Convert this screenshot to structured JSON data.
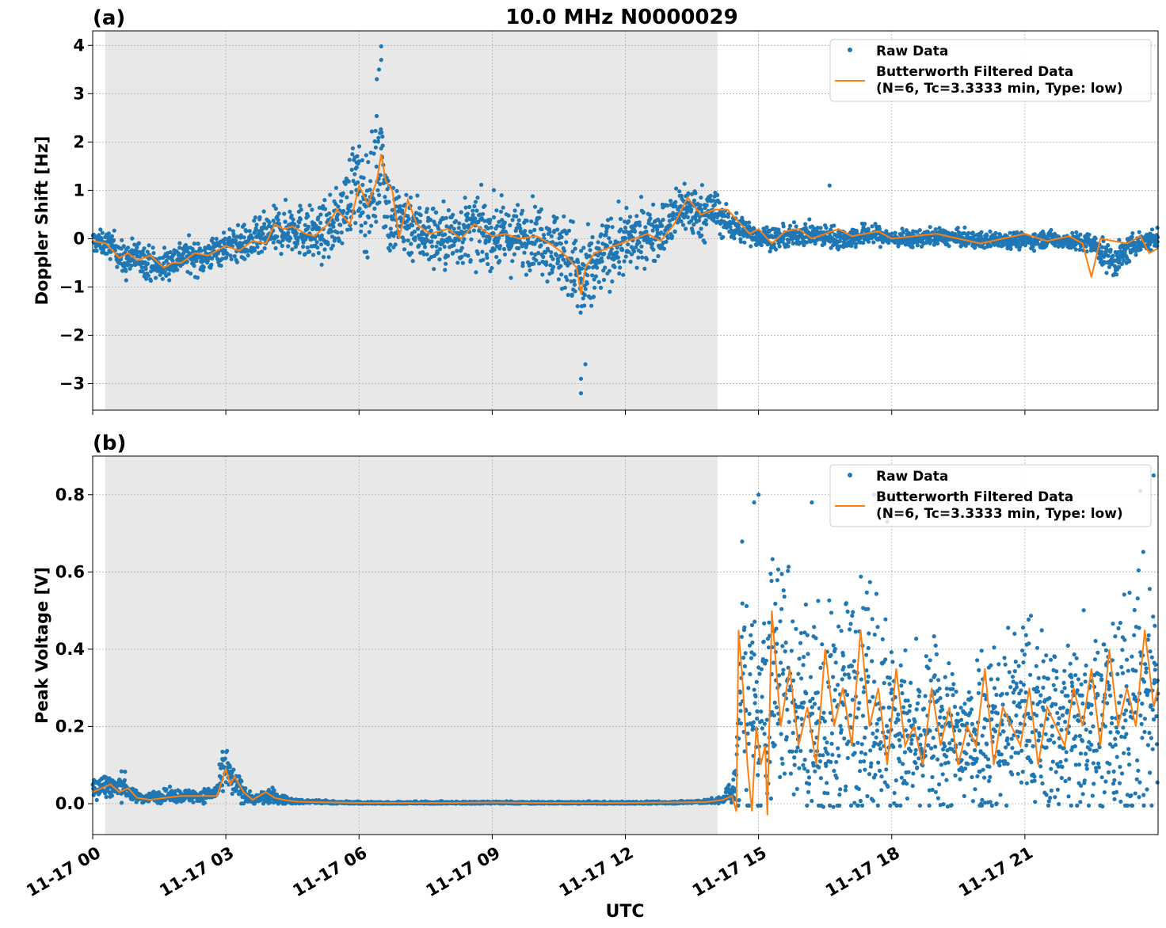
{
  "figure": {
    "title": "10.0 MHz N0000029",
    "xlabel": "UTC",
    "night_shading": {
      "start_hour": 0.28,
      "end_hour": 14.08,
      "color": "#e8e8e8"
    },
    "xlim_hours": [
      0,
      24
    ],
    "x_ticks": [
      {
        "hour": 0,
        "label": "11-17 00"
      },
      {
        "hour": 3,
        "label": "11-17 03"
      },
      {
        "hour": 6,
        "label": "11-17 06"
      },
      {
        "hour": 9,
        "label": "11-17 09"
      },
      {
        "hour": 12,
        "label": "11-17 12"
      },
      {
        "hour": 15,
        "label": "11-17 15"
      },
      {
        "hour": 18,
        "label": "11-17 18"
      },
      {
        "hour": 21,
        "label": "11-17 21"
      }
    ],
    "colors": {
      "raw": "#1f77b4",
      "filtered": "#ff7f0e",
      "grid": "#b0b0b0"
    },
    "legend": {
      "placement": "top-right",
      "raw_label": "Raw Data",
      "filtered_label_line1": "Butterworth Filtered Data",
      "filtered_label_line2": "(N=6, Tc=3.3333 min, Type: low)"
    }
  },
  "chart_data": [
    {
      "type": "scatter",
      "panel_label": "(a)",
      "ylabel": "Doppler Shift [Hz]",
      "ylim": [
        -3.55,
        4.3
      ],
      "y_ticks": [
        {
          "value": 4,
          "label": "4"
        },
        {
          "value": 3,
          "label": "3"
        },
        {
          "value": 2,
          "label": "2"
        },
        {
          "value": 1,
          "label": "1"
        },
        {
          "value": 0,
          "label": "0"
        },
        {
          "value": -1,
          "label": "−1"
        },
        {
          "value": -2,
          "label": "−2"
        },
        {
          "value": -3,
          "label": "−3"
        }
      ],
      "series": [
        {
          "name": "Raw Data",
          "x_hours": [
            0.0,
            0.5,
            0.7,
            1.0,
            1.5,
            2.0,
            2.5,
            3.0,
            3.5,
            4.0,
            4.5,
            5.0,
            5.3,
            5.6,
            5.9,
            6.1,
            6.3,
            6.5,
            6.7,
            7.0,
            7.5,
            8.0,
            8.5,
            9.0,
            9.5,
            10.0,
            10.5,
            10.8,
            11.0,
            11.2,
            11.5,
            12.0,
            12.5,
            13.0,
            13.3,
            13.6,
            14.0,
            14.3,
            14.6,
            15.0,
            15.5,
            16.0,
            16.5,
            17.0,
            17.5,
            18.0,
            18.5,
            19.0,
            19.5,
            20.0,
            20.5,
            21.0,
            21.5,
            22.0,
            22.5,
            23.0,
            23.5,
            24.0
          ],
          "center": [
            -0.05,
            -0.15,
            -0.5,
            -0.35,
            -0.6,
            -0.35,
            -0.4,
            -0.15,
            -0.1,
            0.1,
            0.25,
            0.05,
            0.15,
            0.5,
            1.2,
            0.7,
            1.0,
            1.9,
            0.3,
            0.4,
            0.1,
            0.0,
            0.2,
            0.1,
            0.0,
            0.1,
            -0.2,
            -0.5,
            -1.0,
            -0.8,
            -0.3,
            -0.1,
            0.1,
            0.3,
            0.7,
            0.5,
            0.6,
            0.3,
            0.2,
            0.05,
            0.0,
            0.1,
            0.05,
            0.0,
            0.1,
            0.0,
            0.0,
            0.05,
            0.0,
            -0.05,
            0.0,
            -0.05,
            0.0,
            -0.05,
            -0.1,
            -0.5,
            -0.1,
            0.0
          ],
          "spread": [
            0.2,
            0.25,
            0.35,
            0.3,
            0.3,
            0.3,
            0.3,
            0.3,
            0.35,
            0.4,
            0.45,
            0.5,
            0.5,
            0.6,
            0.8,
            0.9,
            1.0,
            1.2,
            0.8,
            0.7,
            0.6,
            0.6,
            0.6,
            0.6,
            0.6,
            0.6,
            0.7,
            0.8,
            1.0,
            0.8,
            0.6,
            0.6,
            0.5,
            0.5,
            0.5,
            0.5,
            0.4,
            0.3,
            0.25,
            0.2,
            0.2,
            0.2,
            0.2,
            0.2,
            0.2,
            0.15,
            0.15,
            0.15,
            0.15,
            0.15,
            0.15,
            0.15,
            0.15,
            0.15,
            0.2,
            0.3,
            0.2,
            0.2
          ],
          "peak_high": 3.98,
          "peak_low": -3.2
        },
        {
          "name": "Butterworth Filtered Data",
          "x_hours": [
            0.0,
            0.3,
            0.6,
            0.8,
            1.0,
            1.3,
            1.6,
            1.8,
            2.0,
            2.3,
            2.6,
            3.0,
            3.3,
            3.6,
            3.9,
            4.1,
            4.3,
            4.5,
            4.8,
            5.0,
            5.3,
            5.5,
            5.8,
            6.0,
            6.2,
            6.4,
            6.5,
            6.6,
            6.75,
            6.9,
            7.1,
            7.3,
            7.6,
            8.0,
            8.3,
            8.6,
            9.0,
            9.3,
            9.6,
            10.0,
            10.3,
            10.6,
            10.9,
            11.0,
            11.1,
            11.3,
            11.6,
            11.9,
            12.2,
            12.5,
            12.8,
            13.1,
            13.4,
            13.7,
            14.0,
            14.3,
            14.6,
            14.8,
            15.0,
            15.3,
            15.6,
            15.9,
            16.2,
            16.5,
            16.8,
            17.1,
            17.4,
            17.7,
            18.0,
            18.5,
            19.0,
            19.5,
            20.0,
            20.5,
            21.0,
            21.5,
            22.0,
            22.3,
            22.5,
            22.7,
            23.0,
            23.3,
            23.6,
            23.8,
            24.0
          ],
          "y": [
            -0.05,
            -0.1,
            -0.4,
            -0.3,
            -0.45,
            -0.35,
            -0.6,
            -0.5,
            -0.5,
            -0.3,
            -0.35,
            -0.15,
            -0.25,
            -0.05,
            -0.1,
            0.3,
            0.2,
            0.25,
            0.1,
            0.05,
            0.3,
            0.6,
            0.3,
            1.1,
            0.7,
            1.2,
            1.75,
            1.2,
            1.0,
            0.0,
            0.8,
            0.3,
            0.1,
            0.2,
            0.0,
            0.3,
            0.05,
            0.1,
            0.0,
            0.05,
            -0.1,
            -0.3,
            -0.6,
            -1.15,
            -0.6,
            -0.3,
            -0.2,
            -0.1,
            0.0,
            0.1,
            -0.05,
            0.3,
            0.85,
            0.5,
            0.6,
            0.6,
            0.3,
            0.1,
            0.2,
            -0.1,
            0.15,
            0.2,
            0.0,
            0.1,
            0.2,
            0.05,
            0.1,
            0.15,
            0.0,
            0.05,
            0.1,
            0.0,
            -0.1,
            0.0,
            0.1,
            -0.05,
            0.05,
            -0.1,
            -0.8,
            0.0,
            -0.05,
            -0.1,
            0.05,
            -0.3,
            -0.2
          ]
        }
      ]
    },
    {
      "type": "scatter",
      "panel_label": "(b)",
      "ylabel": "Peak Voltage [V]",
      "ylim": [
        -0.08,
        0.9
      ],
      "y_ticks": [
        {
          "value": 0.8,
          "label": "0.8"
        },
        {
          "value": 0.6,
          "label": "0.6"
        },
        {
          "value": 0.4,
          "label": "0.4"
        },
        {
          "value": 0.2,
          "label": "0.2"
        },
        {
          "value": 0.0,
          "label": "0.0"
        }
      ],
      "series": [
        {
          "name": "Raw Data",
          "x_hours": [
            0.0,
            0.3,
            0.5,
            0.7,
            0.9,
            1.2,
            1.5,
            2.0,
            2.5,
            2.8,
            3.0,
            3.1,
            3.3,
            3.6,
            4.0,
            4.3,
            4.6,
            5.0,
            5.5,
            6.0,
            7.0,
            8.0,
            9.0,
            10.0,
            11.0,
            12.0,
            13.0,
            13.8,
            14.2,
            14.5,
            14.6,
            14.8,
            15.0,
            15.2,
            15.5,
            16.0,
            16.5,
            17.0,
            17.5,
            18.0,
            18.5,
            19.0,
            19.5,
            20.0,
            20.5,
            21.0,
            21.5,
            22.0,
            22.5,
            23.0,
            23.5,
            24.0
          ],
          "center": [
            0.04,
            0.05,
            0.04,
            0.05,
            0.02,
            0.015,
            0.02,
            0.02,
            0.02,
            0.03,
            0.1,
            0.06,
            0.04,
            0.01,
            0.02,
            0.01,
            0.005,
            0.005,
            0.003,
            0.002,
            0.002,
            0.002,
            0.003,
            0.002,
            0.002,
            0.002,
            0.003,
            0.005,
            0.01,
            0.05,
            0.35,
            0.25,
            0.15,
            0.3,
            0.35,
            0.25,
            0.2,
            0.25,
            0.3,
            0.2,
            0.15,
            0.2,
            0.15,
            0.2,
            0.2,
            0.25,
            0.2,
            0.2,
            0.25,
            0.2,
            0.25,
            0.3
          ],
          "spread": [
            0.03,
            0.03,
            0.03,
            0.03,
            0.015,
            0.01,
            0.015,
            0.015,
            0.015,
            0.02,
            0.06,
            0.04,
            0.03,
            0.01,
            0.02,
            0.01,
            0.005,
            0.005,
            0.003,
            0.003,
            0.003,
            0.003,
            0.003,
            0.003,
            0.003,
            0.003,
            0.003,
            0.004,
            0.01,
            0.05,
            0.3,
            0.3,
            0.2,
            0.3,
            0.3,
            0.25,
            0.25,
            0.25,
            0.3,
            0.2,
            0.18,
            0.2,
            0.18,
            0.2,
            0.22,
            0.22,
            0.2,
            0.22,
            0.25,
            0.25,
            0.3,
            0.3
          ],
          "peak_high": 0.85,
          "peak_low": -0.02
        },
        {
          "name": "Butterworth Filtered Data",
          "x_hours": [
            0.0,
            0.2,
            0.4,
            0.6,
            0.8,
            1.0,
            1.3,
            1.6,
            2.0,
            2.4,
            2.8,
            3.0,
            3.1,
            3.2,
            3.4,
            3.6,
            3.9,
            4.1,
            4.3,
            4.6,
            5.0,
            5.5,
            6.0,
            7.0,
            8.0,
            9.0,
            10.0,
            11.0,
            12.0,
            13.0,
            13.8,
            14.2,
            14.4,
            14.5,
            14.55,
            14.65,
            14.75,
            14.85,
            14.95,
            15.05,
            15.15,
            15.2,
            15.3,
            15.5,
            15.7,
            15.9,
            16.1,
            16.3,
            16.5,
            16.7,
            16.9,
            17.1,
            17.3,
            17.5,
            17.7,
            17.9,
            18.1,
            18.3,
            18.5,
            18.7,
            18.9,
            19.1,
            19.3,
            19.5,
            19.7,
            19.9,
            20.1,
            20.3,
            20.5,
            20.7,
            20.9,
            21.1,
            21.3,
            21.5,
            21.7,
            21.9,
            22.1,
            22.3,
            22.5,
            22.7,
            22.9,
            23.1,
            23.3,
            23.5,
            23.7,
            23.9,
            24.0
          ],
          "y": [
            0.03,
            0.04,
            0.05,
            0.03,
            0.04,
            0.015,
            0.01,
            0.015,
            0.02,
            0.02,
            0.02,
            0.09,
            0.05,
            0.07,
            0.03,
            0.01,
            0.03,
            0.015,
            0.01,
            0.005,
            0.004,
            0.003,
            0.002,
            0.002,
            0.002,
            0.003,
            0.002,
            0.002,
            0.002,
            0.003,
            0.004,
            0.01,
            0.02,
            -0.02,
            0.45,
            0.3,
            0.1,
            -0.02,
            0.2,
            0.1,
            0.15,
            -0.03,
            0.5,
            0.2,
            0.35,
            0.15,
            0.25,
            0.1,
            0.4,
            0.2,
            0.3,
            0.15,
            0.45,
            0.2,
            0.3,
            0.1,
            0.35,
            0.15,
            0.2,
            0.1,
            0.3,
            0.15,
            0.25,
            0.1,
            0.2,
            0.15,
            0.35,
            0.1,
            0.25,
            0.2,
            0.15,
            0.3,
            0.1,
            0.25,
            0.2,
            0.15,
            0.3,
            0.2,
            0.35,
            0.15,
            0.4,
            0.2,
            0.3,
            0.2,
            0.45,
            0.25,
            0.3
          ]
        }
      ]
    }
  ]
}
